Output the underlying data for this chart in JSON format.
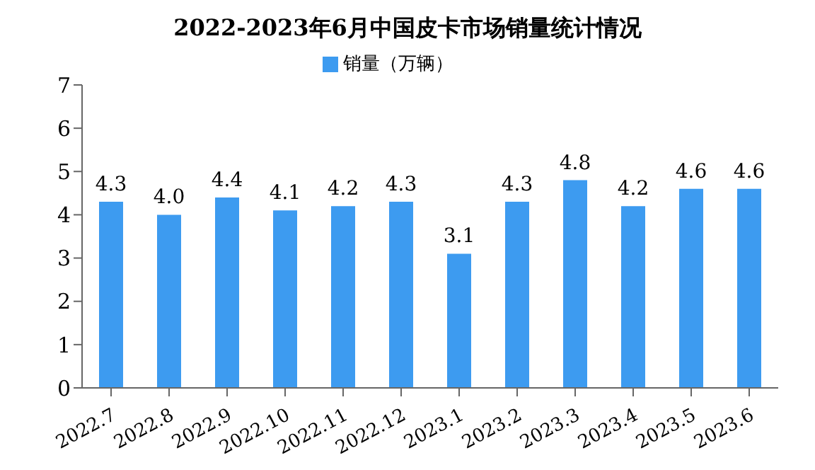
{
  "chart_data": {
    "type": "bar",
    "title": "2022-2023年6月中国皮卡市场销量统计情况",
    "categories": [
      "2022.7",
      "2022.8",
      "2022.9",
      "2022.10",
      "2022.11",
      "2022.12",
      "2023.1",
      "2023.2",
      "2023.3",
      "2023.4",
      "2023.5",
      "2023.6"
    ],
    "series": [
      {
        "name": "销量（万辆）",
        "color": "#3d9bf0",
        "values": [
          4.3,
          4.0,
          4.4,
          4.1,
          4.2,
          4.3,
          3.1,
          4.3,
          4.8,
          4.2,
          4.6,
          4.6
        ],
        "value_labels": [
          "4.3",
          "4.0",
          "4.4",
          "4.1",
          "4.2",
          "4.3",
          "3.1",
          "4.3",
          "4.8",
          "4.2",
          "4.6",
          "4.6"
        ]
      }
    ],
    "ylim": [
      0,
      7
    ],
    "yticks": [
      0,
      1,
      2,
      3,
      4,
      5,
      6,
      7
    ],
    "legend": "top",
    "grid": false
  }
}
